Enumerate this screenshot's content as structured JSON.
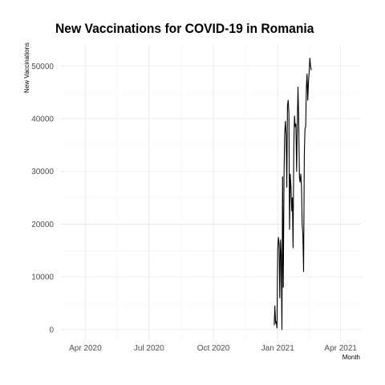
{
  "chart_data": {
    "type": "line",
    "title": "New Vaccinations for COVID-19 in Romania",
    "xlabel": "Month",
    "ylabel": "New Vaccinations",
    "xlim": [
      "2020-02-25",
      "2021-04-30"
    ],
    "ylim": [
      -2000,
      54000
    ],
    "x_ticks": [
      {
        "date": "2020-04-01",
        "label": "Apr 2020"
      },
      {
        "date": "2020-07-01",
        "label": "Jul 2020"
      },
      {
        "date": "2020-10-01",
        "label": "Oct 2020"
      },
      {
        "date": "2021-01-01",
        "label": "Jan 2021"
      },
      {
        "date": "2021-04-01",
        "label": "Apr 2021"
      }
    ],
    "y_ticks": [
      0,
      10000,
      20000,
      30000,
      40000,
      50000
    ],
    "grid": true,
    "legend": "none",
    "line_color": "#000000",
    "series": [
      {
        "x": [
          "2020-12-27",
          "2020-12-28",
          "2020-12-29",
          "2020-12-30",
          "2020-12-31",
          "2021-01-01",
          "2021-01-02",
          "2021-01-03",
          "2021-01-04",
          "2021-01-05",
          "2021-01-06",
          "2021-01-07",
          "2021-01-08",
          "2021-01-09",
          "2021-01-10",
          "2021-01-11",
          "2021-01-12",
          "2021-01-13",
          "2021-01-14",
          "2021-01-15",
          "2021-01-16",
          "2021-01-17",
          "2021-01-18",
          "2021-01-19",
          "2021-01-20",
          "2021-01-21",
          "2021-01-22",
          "2021-01-23",
          "2021-01-24",
          "2021-01-25",
          "2021-01-26",
          "2021-01-27",
          "2021-01-28",
          "2021-01-29",
          "2021-01-30",
          "2021-01-31",
          "2021-02-01",
          "2021-02-02",
          "2021-02-03",
          "2021-02-04",
          "2021-02-05",
          "2021-02-06",
          "2021-02-07",
          "2021-02-08",
          "2021-02-09",
          "2021-02-10",
          "2021-02-11",
          "2021-02-12",
          "2021-02-13",
          "2021-02-14",
          "2021-02-15",
          "2021-02-16",
          "2021-02-17",
          "2021-02-18",
          "2021-02-19",
          "2021-02-20",
          "2021-02-21",
          "2021-02-22",
          "2021-02-23",
          "2021-02-24",
          "2021-02-25"
        ],
        "y": [
          800,
          4500,
          1200,
          1500,
          300,
          15000,
          17500,
          16000,
          6000,
          17000,
          14000,
          0,
          29000,
          8000,
          29000,
          37000,
          39500,
          37000,
          27000,
          42500,
          43500,
          41000,
          19000,
          29500,
          27000,
          22500,
          25000,
          15500,
          35000,
          40500,
          38500,
          39000,
          30000,
          38000,
          46000,
          40000,
          29000,
          28000,
          29500,
          27000,
          20000,
          18000,
          11000,
          33000,
          38000,
          38500,
          46000,
          48500,
          43500,
          47000,
          49000,
          51500,
          50000,
          49200,
          null,
          null,
          null,
          null,
          null,
          null,
          null
        ]
      }
    ]
  }
}
